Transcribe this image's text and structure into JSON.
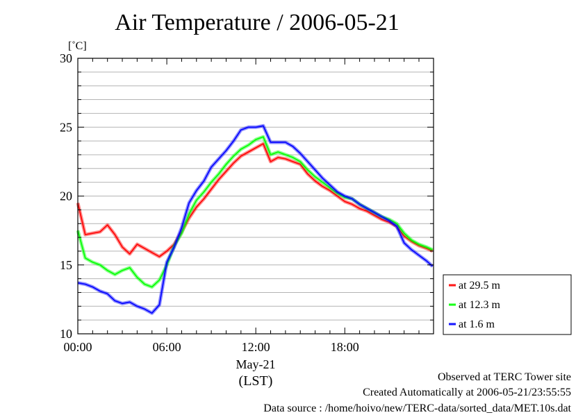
{
  "title": "Air Temperature / 2006-05-21",
  "footer": {
    "observed": "Observed at TERC Tower site",
    "created": "Created Automatically at 2006-05-21/23:55:55",
    "source": "Data source : /home/hoivo/new/TERC-data/sorted_data/MET.10s.dat"
  },
  "chart_data": {
    "type": "line",
    "title": "Air Temperature / 2006-05-21",
    "ylabel": "[˚C]",
    "xlabel": "(LST)",
    "x_date_label": "May-21",
    "ylim": [
      10,
      30
    ],
    "xlim": [
      "00:00",
      "23:59"
    ],
    "yticks": [
      "10",
      "15",
      "20",
      "25",
      "30"
    ],
    "xticks": [
      "00:00",
      "06:00",
      "12:00",
      "18:00"
    ],
    "grid": true,
    "legend_position": "right",
    "x": [
      "00:00",
      "00:30",
      "01:00",
      "01:30",
      "02:00",
      "02:30",
      "03:00",
      "03:30",
      "04:00",
      "04:30",
      "05:00",
      "05:30",
      "06:00",
      "06:30",
      "07:00",
      "07:30",
      "08:00",
      "08:30",
      "09:00",
      "09:30",
      "10:00",
      "10:30",
      "11:00",
      "11:30",
      "12:00",
      "12:30",
      "13:00",
      "13:30",
      "14:00",
      "14:30",
      "15:00",
      "15:30",
      "16:00",
      "16:30",
      "17:00",
      "17:30",
      "18:00",
      "18:30",
      "19:00",
      "19:30",
      "20:00",
      "20:30",
      "21:00",
      "21:30",
      "22:00",
      "22:30",
      "23:00",
      "23:30",
      "23:55"
    ],
    "series": [
      {
        "name": "at 29.5 m",
        "color": "#ff0000",
        "values": [
          19.5,
          17.2,
          17.3,
          17.4,
          17.9,
          17.2,
          16.3,
          15.8,
          16.5,
          16.2,
          15.9,
          15.6,
          16.0,
          16.5,
          17.4,
          18.4,
          19.2,
          19.8,
          20.5,
          21.2,
          21.8,
          22.4,
          22.9,
          23.2,
          23.5,
          23.8,
          22.5,
          22.8,
          22.7,
          22.5,
          22.3,
          21.6,
          21.1,
          20.7,
          20.4,
          20.0,
          19.6,
          19.4,
          19.1,
          18.9,
          18.6,
          18.3,
          18.1,
          17.8,
          17.1,
          16.7,
          16.4,
          16.2,
          16.0
        ]
      },
      {
        "name": "at 12.3 m",
        "color": "#00ff00",
        "values": [
          17.5,
          15.5,
          15.2,
          15.0,
          14.6,
          14.3,
          14.6,
          14.8,
          14.1,
          13.6,
          13.4,
          13.9,
          15.0,
          16.4,
          17.3,
          18.7,
          19.7,
          20.3,
          21.0,
          21.6,
          22.3,
          22.9,
          23.4,
          23.7,
          24.1,
          24.3,
          23.0,
          23.2,
          23.0,
          22.8,
          22.5,
          21.9,
          21.4,
          21.0,
          20.6,
          20.2,
          19.9,
          19.8,
          19.4,
          19.1,
          18.8,
          18.5,
          18.3,
          18.0,
          17.3,
          16.8,
          16.5,
          16.3,
          16.1
        ]
      },
      {
        "name": "at 1.6 m",
        "color": "#0000ff",
        "values": [
          13.7,
          13.6,
          13.4,
          13.1,
          12.9,
          12.4,
          12.2,
          12.3,
          12.0,
          11.8,
          11.5,
          12.1,
          15.2,
          16.3,
          17.7,
          19.5,
          20.4,
          21.1,
          22.1,
          22.7,
          23.3,
          24.0,
          24.8,
          25.0,
          25.0,
          25.1,
          23.9,
          23.9,
          23.9,
          23.6,
          23.1,
          22.5,
          21.9,
          21.3,
          20.8,
          20.3,
          20.0,
          19.8,
          19.4,
          19.1,
          18.8,
          18.5,
          18.2,
          17.8,
          16.6,
          16.1,
          15.7,
          15.3,
          14.9
        ]
      }
    ]
  }
}
